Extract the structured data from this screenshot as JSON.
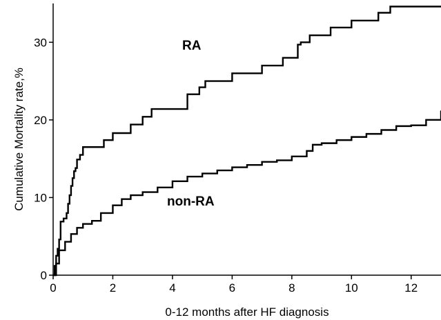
{
  "chart_data": {
    "type": "line",
    "xlabel": "0-12 months after HF diagnosis",
    "ylabel": "Cumulative Mortality rate,%",
    "xlim": [
      0,
      13
    ],
    "ylim": [
      0,
      35
    ],
    "x_ticks": [
      "0",
      "2",
      "4",
      "6",
      "8",
      "10",
      "12"
    ],
    "y_ticks": [
      "0",
      "10",
      "20",
      "30"
    ],
    "grid": false,
    "step": true,
    "line_color": "#000000",
    "series": [
      {
        "name": "RA",
        "points": [
          [
            0,
            0
          ],
          [
            0.05,
            1.2
          ],
          [
            0.1,
            2.5
          ],
          [
            0.15,
            3.4
          ],
          [
            0.2,
            4.6
          ],
          [
            0.25,
            6.9
          ],
          [
            0.35,
            7.3
          ],
          [
            0.45,
            8.0
          ],
          [
            0.5,
            9.2
          ],
          [
            0.55,
            10.3
          ],
          [
            0.6,
            11.5
          ],
          [
            0.65,
            12.5
          ],
          [
            0.7,
            13.4
          ],
          [
            0.75,
            13.8
          ],
          [
            0.8,
            14.9
          ],
          [
            0.9,
            15.5
          ],
          [
            1.0,
            16.5
          ],
          [
            1.7,
            17.4
          ],
          [
            2.0,
            18.3
          ],
          [
            2.6,
            19.4
          ],
          [
            3.0,
            20.4
          ],
          [
            3.3,
            21.4
          ],
          [
            4.5,
            23.3
          ],
          [
            4.9,
            24.2
          ],
          [
            5.1,
            25.0
          ],
          [
            6.0,
            26.0
          ],
          [
            7.0,
            27.0
          ],
          [
            7.7,
            28.0
          ],
          [
            8.2,
            29.7
          ],
          [
            8.3,
            30.0
          ],
          [
            8.6,
            30.9
          ],
          [
            9.3,
            31.9
          ],
          [
            10.0,
            32.8
          ],
          [
            10.9,
            33.8
          ],
          [
            11.3,
            34.6
          ],
          [
            13.0,
            34.6
          ]
        ]
      },
      {
        "name": "non-RA",
        "points": [
          [
            0,
            0
          ],
          [
            0.1,
            1.5
          ],
          [
            0.2,
            3.2
          ],
          [
            0.4,
            4.3
          ],
          [
            0.6,
            5.3
          ],
          [
            0.8,
            6.1
          ],
          [
            1.0,
            6.6
          ],
          [
            1.3,
            7.0
          ],
          [
            1.6,
            8.0
          ],
          [
            2.0,
            9.0
          ],
          [
            2.3,
            9.8
          ],
          [
            2.6,
            10.3
          ],
          [
            3.0,
            10.7
          ],
          [
            3.5,
            11.3
          ],
          [
            4.0,
            12.1
          ],
          [
            4.5,
            12.7
          ],
          [
            5.0,
            13.1
          ],
          [
            5.5,
            13.5
          ],
          [
            6.0,
            13.9
          ],
          [
            6.5,
            14.2
          ],
          [
            7.0,
            14.6
          ],
          [
            7.5,
            14.8
          ],
          [
            8.0,
            15.3
          ],
          [
            8.5,
            16.0
          ],
          [
            8.7,
            16.8
          ],
          [
            9.0,
            17.0
          ],
          [
            9.5,
            17.4
          ],
          [
            10.0,
            17.8
          ],
          [
            10.5,
            18.2
          ],
          [
            11.0,
            18.7
          ],
          [
            11.5,
            19.2
          ],
          [
            12.0,
            19.3
          ],
          [
            12.5,
            20.0
          ],
          [
            13.0,
            21.2
          ]
        ]
      }
    ]
  }
}
